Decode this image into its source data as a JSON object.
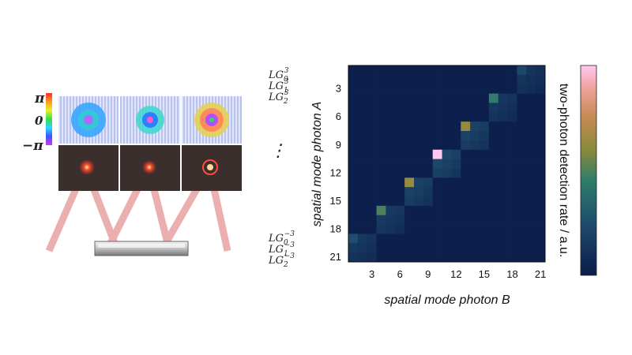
{
  "phase_scale": {
    "top": "π",
    "middle": "0",
    "bottom": "−π"
  },
  "mode_labels_top": [
    {
      "base": "LG",
      "sub": "0",
      "sup": "3"
    },
    {
      "base": "LG",
      "sub": "1",
      "sup": "3"
    },
    {
      "base": "LG",
      "sub": "2",
      "sup": "3"
    }
  ],
  "mode_labels_bottom": [
    {
      "base": "LG",
      "sub": "0",
      "sup": "−3"
    },
    {
      "base": "LG",
      "sub": "1",
      "sup": "−3"
    },
    {
      "base": "LG",
      "sub": "2",
      "sup": "−3"
    }
  ],
  "ellipsis": "⋮",
  "chart_data": {
    "type": "heatmap",
    "rows": 21,
    "cols": 21,
    "x_ticks": [
      3,
      6,
      9,
      12,
      15,
      18,
      21
    ],
    "y_ticks": [
      3,
      6,
      9,
      12,
      15,
      18,
      21
    ],
    "xlabel": "spatial mode photon B",
    "ylabel": "spatial mode photon A",
    "colorbar_label": "two-photon detection rate / a.u.",
    "background_value": 0.02,
    "blocks": [
      {
        "row": 1,
        "col": 19,
        "diag": 0.22,
        "off": 0.14
      },
      {
        "row": 4,
        "col": 16,
        "diag": 0.45,
        "off": 0.16
      },
      {
        "row": 7,
        "col": 13,
        "diag": 0.62,
        "off": 0.22
      },
      {
        "row": 10,
        "col": 10,
        "diag": 1.0,
        "off": 0.25
      },
      {
        "row": 13,
        "col": 7,
        "diag": 0.64,
        "off": 0.22
      },
      {
        "row": 16,
        "col": 4,
        "diag": 0.5,
        "off": 0.18
      },
      {
        "row": 19,
        "col": 1,
        "diag": 0.26,
        "off": 0.16
      }
    ]
  }
}
